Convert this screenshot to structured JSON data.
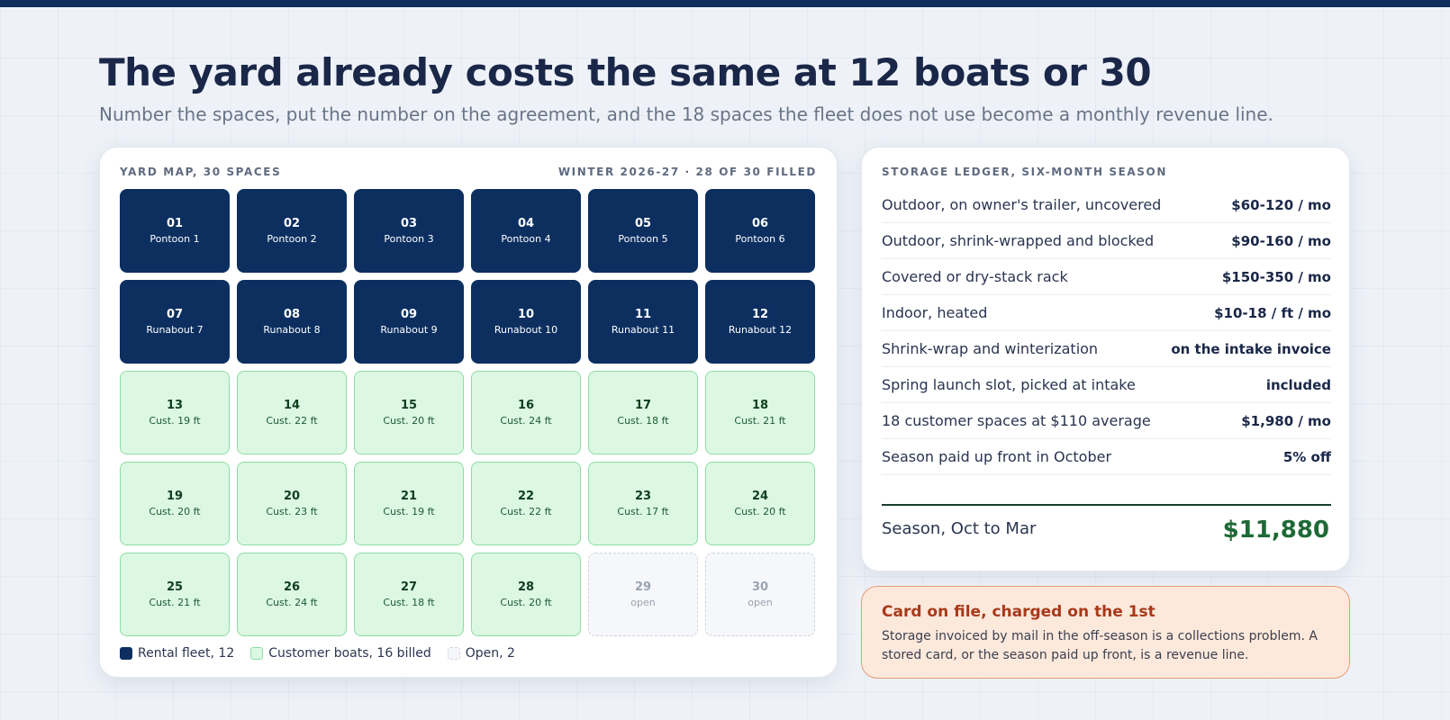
{
  "title": "The yard already costs the same at 12 boats or 30",
  "subtitle": "Number the spaces, put the number on the agreement, and the 18 spaces the fleet does not use become a monthly revenue line.",
  "map": {
    "heading": "YARD MAP, 30 SPACES",
    "status": "WINTER 2026-27 · 28 OF 30 FILLED",
    "spaces": [
      {
        "num": "01",
        "label": "Pontoon 1",
        "kind": "fleet"
      },
      {
        "num": "02",
        "label": "Pontoon 2",
        "kind": "fleet"
      },
      {
        "num": "03",
        "label": "Pontoon 3",
        "kind": "fleet"
      },
      {
        "num": "04",
        "label": "Pontoon 4",
        "kind": "fleet"
      },
      {
        "num": "05",
        "label": "Pontoon 5",
        "kind": "fleet"
      },
      {
        "num": "06",
        "label": "Pontoon 6",
        "kind": "fleet"
      },
      {
        "num": "07",
        "label": "Runabout 7",
        "kind": "fleet"
      },
      {
        "num": "08",
        "label": "Runabout 8",
        "kind": "fleet"
      },
      {
        "num": "09",
        "label": "Runabout 9",
        "kind": "fleet"
      },
      {
        "num": "10",
        "label": "Runabout 10",
        "kind": "fleet"
      },
      {
        "num": "11",
        "label": "Runabout 11",
        "kind": "fleet"
      },
      {
        "num": "12",
        "label": "Runabout 12",
        "kind": "fleet"
      },
      {
        "num": "13",
        "label": "Cust. 19 ft",
        "kind": "cust"
      },
      {
        "num": "14",
        "label": "Cust. 22 ft",
        "kind": "cust"
      },
      {
        "num": "15",
        "label": "Cust. 20 ft",
        "kind": "cust"
      },
      {
        "num": "16",
        "label": "Cust. 24 ft",
        "kind": "cust"
      },
      {
        "num": "17",
        "label": "Cust. 18 ft",
        "kind": "cust"
      },
      {
        "num": "18",
        "label": "Cust. 21 ft",
        "kind": "cust"
      },
      {
        "num": "19",
        "label": "Cust. 20 ft",
        "kind": "cust"
      },
      {
        "num": "20",
        "label": "Cust. 23 ft",
        "kind": "cust"
      },
      {
        "num": "21",
        "label": "Cust. 19 ft",
        "kind": "cust"
      },
      {
        "num": "22",
        "label": "Cust. 22 ft",
        "kind": "cust"
      },
      {
        "num": "23",
        "label": "Cust. 17 ft",
        "kind": "cust"
      },
      {
        "num": "24",
        "label": "Cust. 20 ft",
        "kind": "cust"
      },
      {
        "num": "25",
        "label": "Cust. 21 ft",
        "kind": "cust"
      },
      {
        "num": "26",
        "label": "Cust. 24 ft",
        "kind": "cust"
      },
      {
        "num": "27",
        "label": "Cust. 18 ft",
        "kind": "cust"
      },
      {
        "num": "28",
        "label": "Cust. 20 ft",
        "kind": "cust"
      },
      {
        "num": "29",
        "label": "open",
        "kind": "open"
      },
      {
        "num": "30",
        "label": "open",
        "kind": "open"
      }
    ],
    "legend": {
      "fleet": "Rental fleet, 12",
      "customer": "Customer boats, 16 billed",
      "open": "Open, 2"
    }
  },
  "ledger": {
    "heading": "STORAGE LEDGER, SIX-MONTH SEASON",
    "rows": [
      {
        "label": "Outdoor, on owner's trailer, uncovered",
        "value": "$60-120 / mo"
      },
      {
        "label": "Outdoor, shrink-wrapped and blocked",
        "value": "$90-160 / mo"
      },
      {
        "label": "Covered or dry-stack rack",
        "value": "$150-350 / mo"
      },
      {
        "label": "Indoor, heated",
        "value": "$10-18 / ft / mo"
      },
      {
        "label": "Shrink-wrap and winterization",
        "value": "on the intake invoice"
      },
      {
        "label": "Spring launch slot, picked at intake",
        "value": "included"
      },
      {
        "label": "18 customer spaces at $110 average",
        "value": "$1,980 / mo"
      },
      {
        "label": "Season paid up front in October",
        "value": "5% off"
      }
    ],
    "total_label": "Season, Oct to Mar",
    "total_value": "$11,880"
  },
  "note": {
    "title": "Card on file, charged on the 1st",
    "body": "Storage invoiced by mail in the off-season is a collections problem. A stored card, or the season paid up front, is a revenue line."
  },
  "colors": {
    "fleet": "#0c2f60",
    "customer": "#dcf8e3",
    "open": "#f6f7fa",
    "total": "#1e6a36",
    "note_accent": "#a8391a"
  }
}
